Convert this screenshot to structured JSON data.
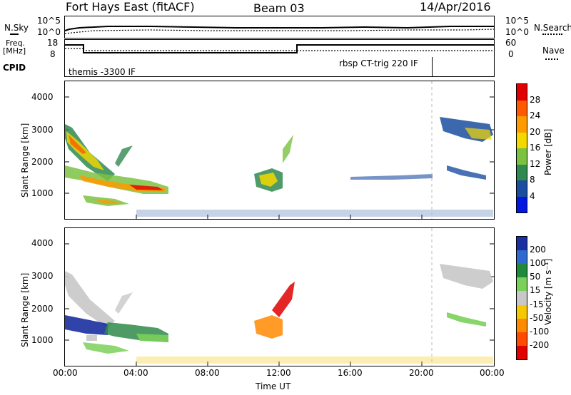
{
  "header": {
    "title": "Fort Hays East (fitACF)",
    "beam": "Beam 03",
    "date": "14/Apr/2016"
  },
  "noise_panel": {
    "left_label": "N.Sky",
    "right_label": "N.Search",
    "left_ticks": [
      "10^5",
      "10^0"
    ],
    "right_ticks": [
      "10^5",
      "10^0"
    ]
  },
  "freq_panel": {
    "left_label_line1": "Freq.",
    "left_label_line2": "[MHz]",
    "right_label": "Nave",
    "left_ticks": [
      "18",
      "8"
    ],
    "right_ticks": [
      "60",
      "0"
    ]
  },
  "cpid_panel": {
    "label": "CPID",
    "mode1": "themis -3300 IF",
    "mode2": "rbsp CT-trig 220 IF"
  },
  "power_panel": {
    "ylabel": "Slant Range [km]",
    "yticks": [
      "4000",
      "3000",
      "2000",
      "1000"
    ],
    "colorbar_label": "Power [dB]",
    "colorbar_ticks": [
      "28",
      "24",
      "20",
      "16",
      "12",
      "8",
      "4"
    ],
    "colorbar_colors": [
      "#e00000",
      "#ff5a00",
      "#ff9a00",
      "#f5d800",
      "#7bc242",
      "#2f8a4f",
      "#1a4fa0",
      "#0018e0"
    ]
  },
  "velocity_panel": {
    "ylabel": "Slant Range [km]",
    "yticks": [
      "4000",
      "3000",
      "2000",
      "1000"
    ],
    "colorbar_label": "Velocity [m s⁻¹]",
    "colorbar_ticks": [
      "200",
      "100",
      "50",
      "15",
      "-15",
      "-50",
      "-100",
      "-200"
    ],
    "colorbar_colors": [
      "#1a2fa0",
      "#2f6ad0",
      "#1f8a3a",
      "#7bd05a",
      "#c8c8c8",
      "#f5c800",
      "#ff8a00",
      "#ff4a00",
      "#e00000"
    ]
  },
  "xaxis": {
    "ticks": [
      "00:00",
      "04:00",
      "08:00",
      "12:00",
      "16:00",
      "20:00",
      "00:00"
    ],
    "label": "Time UT"
  },
  "chart_data": {
    "type": "heatmap",
    "title": "Fort Hays East (fitACF)",
    "xlabel": "Time UT",
    "ylabel": "Slant Range [km]",
    "xlim_hours": [
      0,
      24
    ],
    "ylim_km": [
      180,
      4550
    ],
    "panels": [
      {
        "name": "Power [dB]",
        "range": [
          0,
          32
        ],
        "features": [
          {
            "t_start": 0.0,
            "t_end": 3.2,
            "r_start": 1900,
            "r_end": 3100,
            "value": 14
          },
          {
            "t_start": 0.0,
            "t_end": 5.8,
            "r_start": 1000,
            "r_end": 1700,
            "value": 20
          },
          {
            "t_start": 1.0,
            "t_end": 3.6,
            "r_start": 600,
            "r_end": 900,
            "value": 14
          },
          {
            "t_start": 10.6,
            "t_end": 12.2,
            "r_start": 1100,
            "r_end": 1700,
            "value": 16
          },
          {
            "t_start": 20.6,
            "t_end": 24.0,
            "r_start": 2600,
            "r_end": 3600,
            "value": 10
          }
        ]
      },
      {
        "name": "Velocity [m s-1]",
        "range": [
          -200,
          200
        ],
        "features": [
          {
            "t_start": 0.0,
            "t_end": 3.2,
            "r_start": 1900,
            "r_end": 3100,
            "value": 0
          },
          {
            "t_start": 0.0,
            "t_end": 2.4,
            "r_start": 1200,
            "r_end": 1700,
            "value": 150
          },
          {
            "t_start": 2.4,
            "t_end": 5.8,
            "r_start": 1000,
            "r_end": 1600,
            "value": 40
          },
          {
            "t_start": 10.6,
            "t_end": 12.6,
            "r_start": 1200,
            "r_end": 2800,
            "value": -100
          },
          {
            "t_start": 20.6,
            "t_end": 24.0,
            "r_start": 2600,
            "r_end": 3600,
            "value": 0
          }
        ]
      }
    ],
    "cpid_change_hour": 13.0
  }
}
